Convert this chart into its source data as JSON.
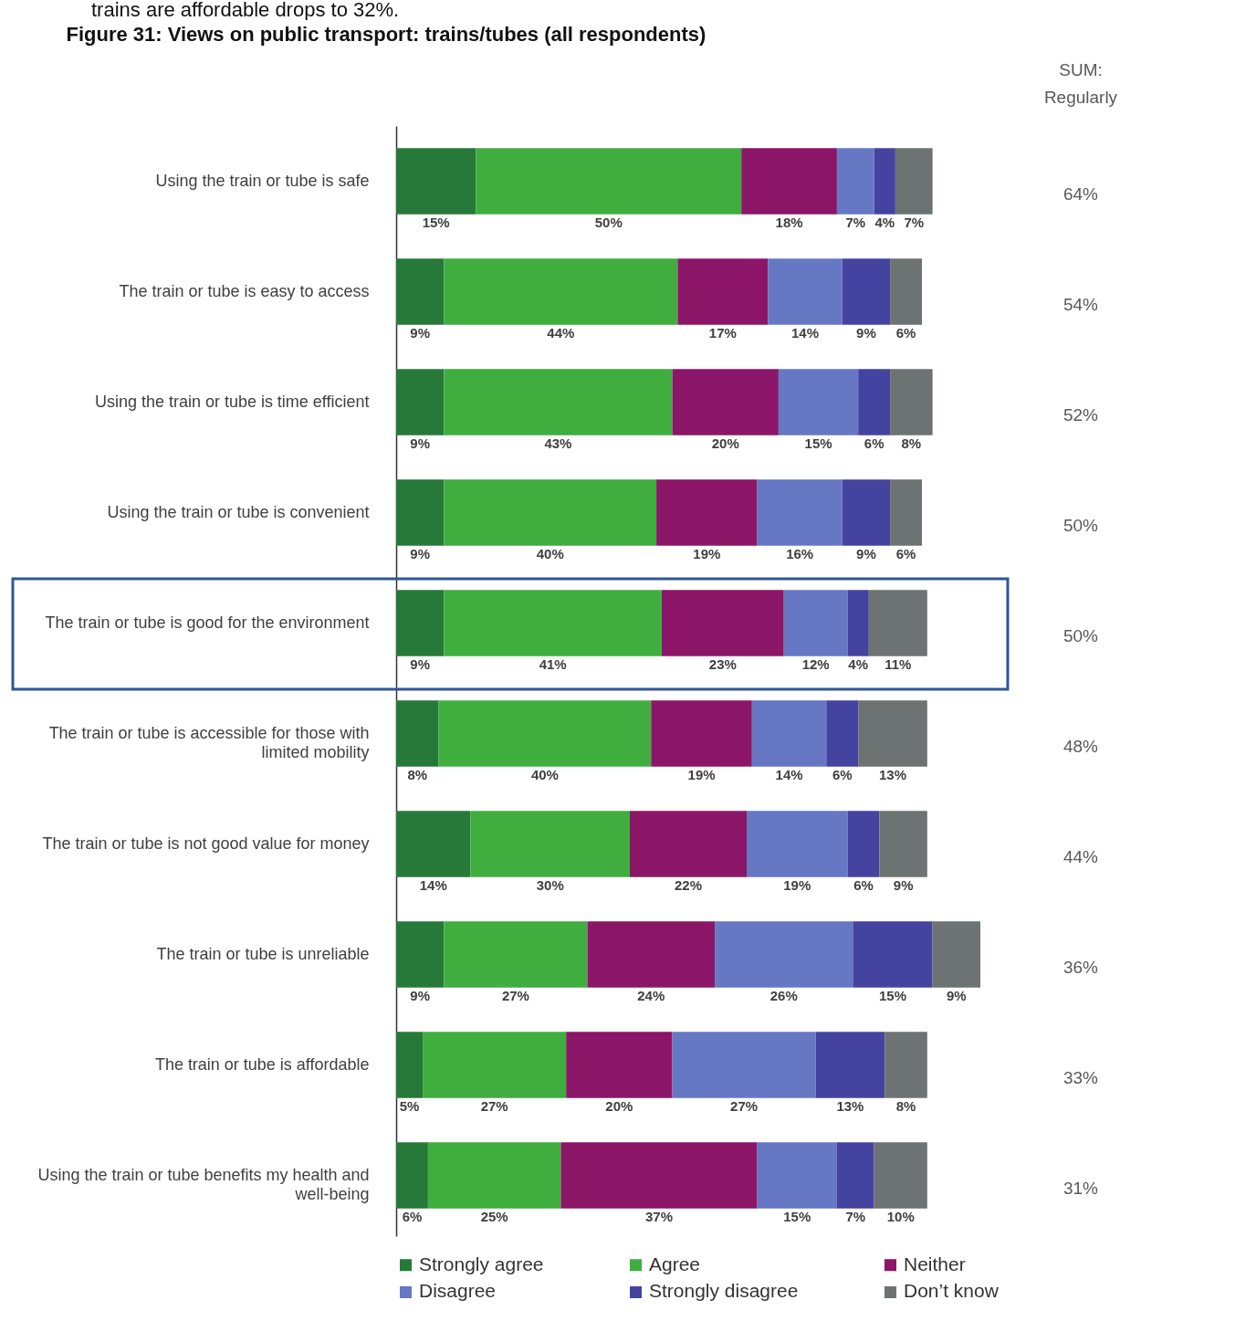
{
  "chart_data": {
    "type": "bar",
    "orientation": "horizontal",
    "stacked": true,
    "legend": "bottom",
    "title": "Figure 31: Views on public transport: trains/tubes (all respondents)",
    "categories": [
      "Using the train or tube is safe",
      "The train or tube is easy to access",
      "Using the train or tube is time efficient",
      "Using the train or tube is convenient",
      "The train or tube is good for the environment",
      "The train or tube is accessible for those with limited mobility",
      "The train or tube is not good value for money",
      "The train or tube is unreliable",
      "The train or tube is affordable",
      "Using the train or tube benefits my health and well-being"
    ],
    "series": [
      {
        "name": "Strongly agree",
        "color": "#27793a",
        "values": [
          15,
          9,
          9,
          9,
          9,
          8,
          14,
          9,
          5,
          6
        ],
        "value_labels": [
          "15%",
          "9%",
          "9%",
          "9%",
          "9%",
          "8%",
          "14%",
          "9%",
          "5%",
          "6%"
        ]
      },
      {
        "name": "Agree",
        "color": "#3fae3f",
        "values": [
          50,
          44,
          43,
          40,
          41,
          40,
          30,
          27,
          27,
          25
        ],
        "value_labels": [
          "50%",
          "44%",
          "43%",
          "40%",
          "41%",
          "40%",
          "30%",
          "27%",
          "27%",
          "25%"
        ]
      },
      {
        "name": "Neither",
        "color": "#8b1668",
        "values": [
          18,
          17,
          20,
          19,
          23,
          19,
          22,
          24,
          20,
          37
        ],
        "value_labels": [
          "18%",
          "17%",
          "20%",
          "19%",
          "23%",
          "19%",
          "22%",
          "24%",
          "20%",
          "37%"
        ]
      },
      {
        "name": "Disagree",
        "color": "#6677c4",
        "values": [
          7,
          14,
          15,
          16,
          12,
          14,
          19,
          26,
          27,
          15
        ],
        "value_labels": [
          "7%",
          "14%",
          "15%",
          "16%",
          "12%",
          "14%",
          "19%",
          "26%",
          "27%",
          "15%"
        ]
      },
      {
        "name": "Strongly disagree",
        "color": "#4444a0",
        "values": [
          4,
          9,
          6,
          9,
          4,
          6,
          6,
          15,
          13,
          7
        ],
        "value_labels": [
          "4%",
          "9%",
          "6%",
          "9%",
          "4%",
          "6%",
          "6%",
          "15%",
          "13%",
          "7%"
        ]
      },
      {
        "name": "Don’t know",
        "color": "#6d7272",
        "values": [
          7,
          6,
          8,
          6,
          11,
          13,
          9,
          9,
          8,
          10
        ],
        "value_labels": [
          "7%",
          "6%",
          "8%",
          "6%",
          "11%",
          "13%",
          "9%",
          "9%",
          "8%",
          "10%"
        ]
      }
    ],
    "annotations": [
      "trains are affordable drops to 32%.",
      "SUM: Regularly",
      "64%",
      "54%",
      "52%",
      "50%",
      "50%",
      "48%",
      "44%",
      "36%",
      "33%",
      "31%"
    ]
  }
}
